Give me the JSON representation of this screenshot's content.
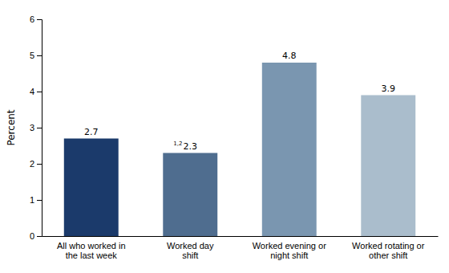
{
  "chart_data": {
    "type": "bar",
    "categories": [
      "All who worked in\nthe last week",
      "Worked day\nshift",
      "Worked evening or\nnight shift",
      "Worked rotating or\nother shift"
    ],
    "values": [
      2.7,
      2.3,
      4.8,
      3.9
    ],
    "colors": [
      "#1b3a6b",
      "#4f6d8f",
      "#7a96b0",
      "#aabdcc"
    ],
    "ylabel": "Percent",
    "ylim": [
      0,
      6
    ],
    "yticks": [
      0,
      1,
      2,
      3,
      4,
      5,
      6
    ],
    "grid": false,
    "data_labels": true,
    "annotations": [
      {
        "text": "1,2",
        "category": "Worked day\nshift"
      }
    ]
  }
}
